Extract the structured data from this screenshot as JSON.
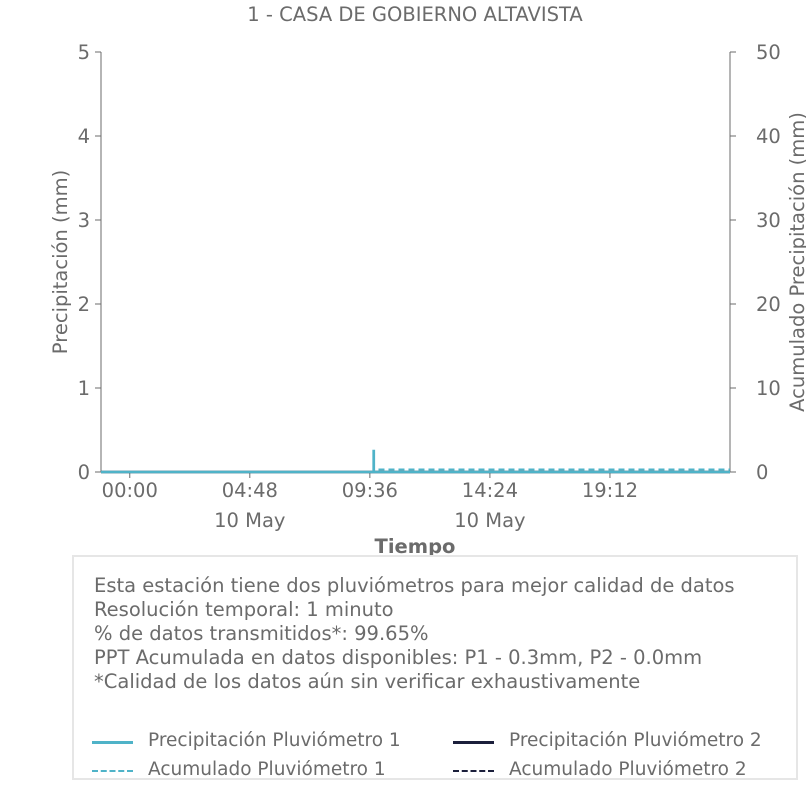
{
  "chart_data": {
    "type": "line",
    "title": "1 - CASA DE GOBIERNO ALTAVISTA",
    "xlabel": "Tiempo",
    "ylabel": "Precipitación (mm)",
    "y2label": "Acumulado Precipitación (mm)",
    "ylim": [
      0,
      5
    ],
    "y2lim": [
      0,
      50
    ],
    "yticks": [
      "0",
      "1",
      "2",
      "3",
      "4",
      "5"
    ],
    "y2ticks": [
      "0",
      "10",
      "20",
      "30",
      "40",
      "50"
    ],
    "x_range_hours": [
      -1.15,
      24
    ],
    "xticks": [
      {
        "hour": 0,
        "label": "00:00",
        "sublabel": ""
      },
      {
        "hour": 4.8,
        "label": "04:48",
        "sublabel": "10 May"
      },
      {
        "hour": 9.6,
        "label": "09:36",
        "sublabel": ""
      },
      {
        "hour": 14.4,
        "label": "14:24",
        "sublabel": "10 May"
      },
      {
        "hour": 19.2,
        "label": "19:12",
        "sublabel": ""
      }
    ],
    "colors": {
      "p1": "#4fb3c8",
      "p2": "#1b1f3b",
      "axis": "#6b6b6b"
    },
    "series": [
      {
        "name": "Precipitación Pluviómetro 1",
        "axis": "left",
        "style": "solid",
        "color": "#4fb3c8",
        "x": [
          -1.15,
          9.75,
          9.75,
          9.76,
          9.76,
          24
        ],
        "y": [
          0,
          0,
          0.25,
          0.25,
          0,
          0
        ]
      },
      {
        "name": "Precipitación Pluviómetro 2",
        "axis": "left",
        "style": "solid",
        "color": "#1b1f3b",
        "x": [
          -1.15,
          24
        ],
        "y": [
          0,
          0
        ]
      },
      {
        "name": "Acumulado Pluviómetro 1",
        "axis": "right",
        "style": "dashed",
        "color": "#4fb3c8",
        "x": [
          -1.15,
          9.75,
          9.75,
          24
        ],
        "y": [
          0,
          0,
          0.3,
          0.3
        ]
      },
      {
        "name": "Acumulado Pluviómetro 2",
        "axis": "right",
        "style": "dashed",
        "color": "#1b1f3b",
        "x": [
          -1.15,
          24
        ],
        "y": [
          0,
          0
        ]
      }
    ]
  },
  "info": {
    "lines": [
      "Esta estación tiene dos pluviómetros para mejor calidad de datos",
      "Resolución temporal: 1 minuto",
      "% de datos transmitidos*: 99.65%",
      "PPT Acumulada en datos disponibles: P1 - 0.3mm, P2 - 0.0mm",
      "*Calidad de los datos aún sin verificar exhaustivamente"
    ]
  },
  "legend": {
    "p1": "Precipitación Pluviómetro 1",
    "p2": "Precipitación Pluviómetro 2",
    "a1": "Acumulado Pluviómetro 1",
    "a2": "Acumulado Pluviómetro 2"
  }
}
